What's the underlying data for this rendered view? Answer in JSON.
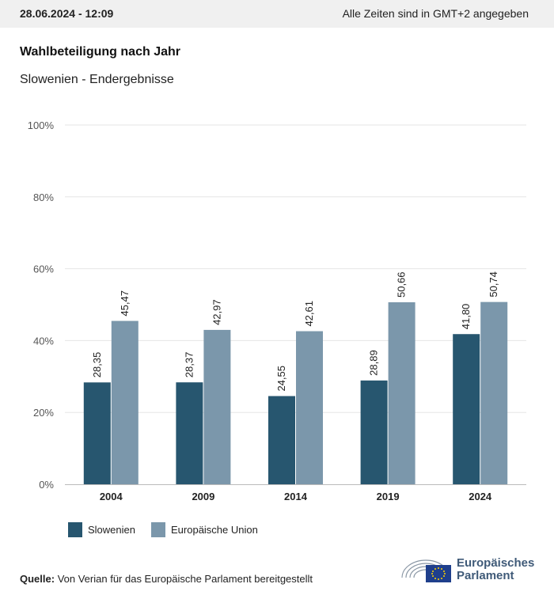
{
  "header": {
    "date": "28.06.2024 - 12:09",
    "timezone_note": "Alle Zeiten sind in GMT+2 angegeben"
  },
  "title": "Wahlbeteiligung nach Jahr",
  "subtitle": "Slowenien - Endergebnisse",
  "source": {
    "label": "Quelle:",
    "text": "Von Verian für das Europäische Parlament bereitgestellt"
  },
  "logo": {
    "line1": "Europäisches",
    "line2": "Parlament"
  },
  "colors": {
    "slowenien": "#27566f",
    "eu": "#7b97ab"
  },
  "chart_data": {
    "type": "bar",
    "categories": [
      "2004",
      "2009",
      "2014",
      "2019",
      "2024"
    ],
    "series": [
      {
        "name": "Slowenien",
        "values": [
          28.35,
          28.37,
          24.55,
          28.89,
          41.8
        ],
        "labels": [
          "28,35",
          "28,37",
          "24,55",
          "28,89",
          "41,80"
        ]
      },
      {
        "name": "Europäische Union",
        "values": [
          45.47,
          42.97,
          42.61,
          50.66,
          50.74
        ],
        "labels": [
          "45,47",
          "42,97",
          "42,61",
          "50,66",
          "50,74"
        ]
      }
    ],
    "yticks": [
      "0%",
      "20%",
      "40%",
      "60%",
      "80%",
      "100%"
    ],
    "ylim": [
      0,
      100
    ],
    "grid": true,
    "legend_position": "bottom-left"
  }
}
